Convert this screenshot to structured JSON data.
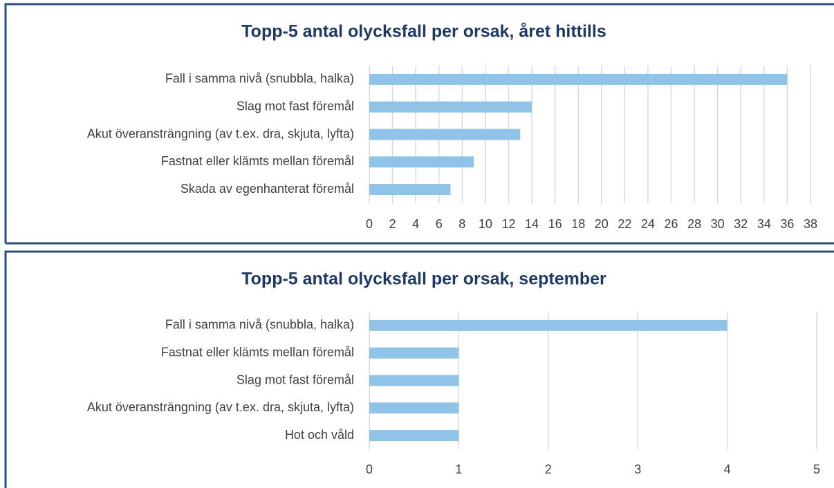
{
  "chart_data": [
    {
      "type": "bar",
      "orientation": "horizontal",
      "title": "Topp-5 antal olycksfall per orsak, året hittills",
      "categories": [
        "Fall i samma nivå (snubbla, halka)",
        "Slag mot fast föremål",
        "Akut överansträngning (av t.ex. dra, skjuta, lyfta)",
        "Fastnat eller klämts mellan föremål",
        "Skada av egenhanterat föremål"
      ],
      "values": [
        36,
        14,
        13,
        9,
        7
      ],
      "color": "#8fc3e7",
      "xlim": [
        0,
        38
      ],
      "xticks": [
        0,
        2,
        4,
        6,
        8,
        10,
        12,
        14,
        16,
        18,
        20,
        22,
        24,
        26,
        28,
        30,
        32,
        34,
        36,
        38
      ],
      "grid": true
    },
    {
      "type": "bar",
      "orientation": "horizontal",
      "title": "Topp-5 antal olycksfall per orsak, september",
      "categories": [
        "Fall i samma nivå (snubbla, halka)",
        "Fastnat eller klämts mellan föremål",
        "Slag mot fast föremål",
        "Akut överansträngning (av t.ex. dra, skjuta, lyfta)",
        "Hot och våld"
      ],
      "values": [
        4,
        1,
        1,
        1,
        1
      ],
      "color": "#8fc3e7",
      "xlim": [
        0,
        5
      ],
      "xticks": [
        0,
        1,
        2,
        3,
        4,
        5
      ],
      "grid": true
    }
  ]
}
